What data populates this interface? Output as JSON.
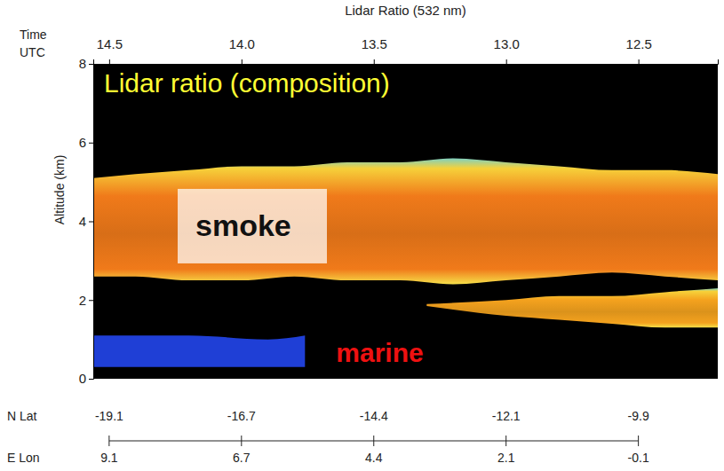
{
  "chart_data": {
    "type": "curtain",
    "title": "Lidar Ratio (532 nm)",
    "annotation": "Lidar ratio (composition)",
    "x_label": "Time UTC",
    "y_label": "Altitude (km)",
    "lat_label": "N Lat",
    "lon_label": "E Lon",
    "xlim": [
      14.56,
      12.2
    ],
    "xticks": [
      14.5,
      {
        "value": 14,
        "label": "14.0"
      },
      13.5,
      {
        "value": 13,
        "label": "13.0"
      },
      12.5
    ],
    "ylim": [
      0,
      8
    ],
    "yticks": [
      0,
      2,
      4,
      6,
      8
    ],
    "lat_ticks": [
      -19.1,
      -16.7,
      -14.4,
      -12.1,
      -9.9
    ],
    "lon_ticks": [
      9.1,
      6.7,
      4.4,
      2.1,
      -0.1
    ],
    "series": [
      {
        "name": "smoke",
        "color": "#f07a1a",
        "x": [
          14.56,
          14.4,
          14.2,
          14.0,
          13.8,
          13.6,
          13.4,
          13.2,
          13.0,
          12.8,
          12.6,
          12.4,
          12.2
        ],
        "top": [
          5.1,
          5.2,
          5.3,
          5.4,
          5.4,
          5.5,
          5.5,
          5.6,
          5.5,
          5.4,
          5.3,
          5.3,
          5.2
        ],
        "bottom": [
          2.6,
          2.6,
          2.5,
          2.5,
          2.6,
          2.5,
          2.5,
          2.4,
          2.5,
          2.6,
          2.7,
          2.6,
          2.5
        ]
      },
      {
        "color": "#f4a21e",
        "x": [
          13.3,
          13.0,
          12.8,
          12.6,
          12.4,
          12.2
        ],
        "top": [
          1.9,
          2.0,
          2.1,
          2.1,
          2.2,
          2.3
        ],
        "bottom": [
          1.85,
          1.6,
          1.5,
          1.4,
          1.3,
          1.3
        ]
      },
      {
        "name": "marine",
        "color": "#1f3fd6",
        "x": [
          14.56,
          14.2,
          13.9,
          13.76
        ],
        "top": [
          1.1,
          1.1,
          1.0,
          1.1
        ],
        "bottom": [
          0.3,
          0.3,
          0.3,
          0.3
        ]
      }
    ]
  }
}
